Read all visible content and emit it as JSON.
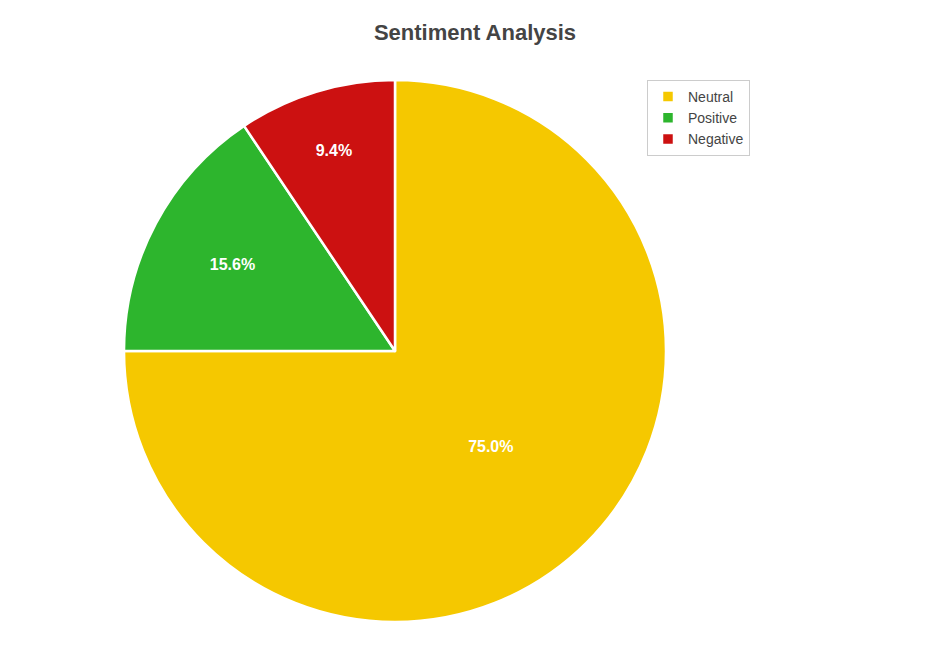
{
  "chart_data": {
    "type": "pie",
    "title": "Sentiment Analysis",
    "categories": [
      "Neutral",
      "Positive",
      "Negative"
    ],
    "values": [
      75.0,
      15.6,
      9.4
    ],
    "value_labels": [
      "75.0%",
      "15.6%",
      "9.4%"
    ],
    "colors": [
      "#f5c800",
      "#2db52d",
      "#cc1111"
    ],
    "data_labels": true,
    "legend": "upper right"
  }
}
